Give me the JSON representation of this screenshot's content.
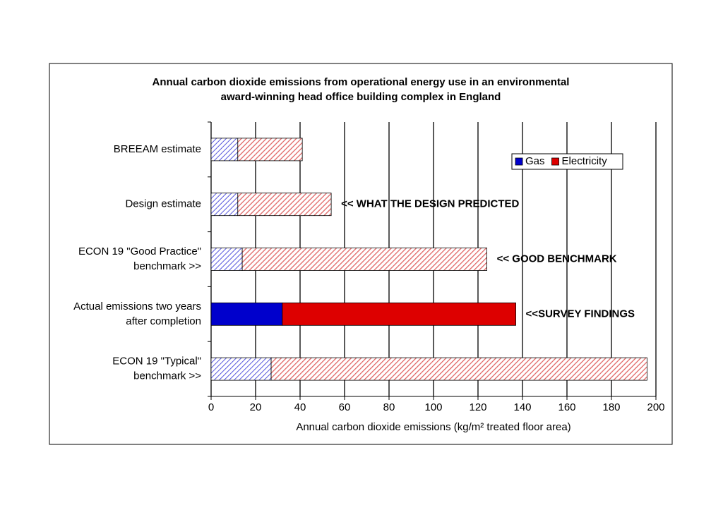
{
  "chart_data": {
    "type": "stacked-barh",
    "title": [
      "Annual carbon dioxide emissions from operational energy use in an environmental",
      "award-winning head office building complex in England"
    ],
    "categories": [
      [
        "BREEAM estimate"
      ],
      [
        "Design estimate"
      ],
      [
        "ECON 19 \"Good Practice\"",
        "benchmark >>"
      ],
      [
        "Actual emissions two years",
        "after completion"
      ],
      [
        "ECON 19 \"Typical\"",
        "benchmark  >>"
      ]
    ],
    "category_colors": [
      "#000000",
      "#000000",
      "#0000ff",
      "#ff0000",
      "#0000ff"
    ],
    "hatched": [
      true,
      true,
      true,
      false,
      true
    ],
    "series": [
      {
        "name": "Gas",
        "color": "#0000cc",
        "values": [
          12,
          12,
          14,
          32,
          27
        ]
      },
      {
        "name": "Electricity",
        "color": "#dd0000",
        "values": [
          29,
          42,
          110,
          105,
          169
        ]
      }
    ],
    "annotations": [
      {
        "text": "<< WHAT THE DESIGN PREDICTED",
        "color": "#0000ff"
      },
      {
        "text": "<< GOOD BENCHMARK",
        "color": "#006400"
      },
      {
        "text": "<<SURVEY FINDINGS",
        "color": "#ff0000"
      }
    ],
    "xlabel": "Annual carbon dioxide emissions (kg/m² treated floor area)",
    "xlim": [
      0,
      200
    ],
    "xticks": [
      0,
      20,
      40,
      60,
      80,
      100,
      120,
      140,
      160,
      180,
      200
    ],
    "grid": true,
    "legend": "upper right"
  }
}
